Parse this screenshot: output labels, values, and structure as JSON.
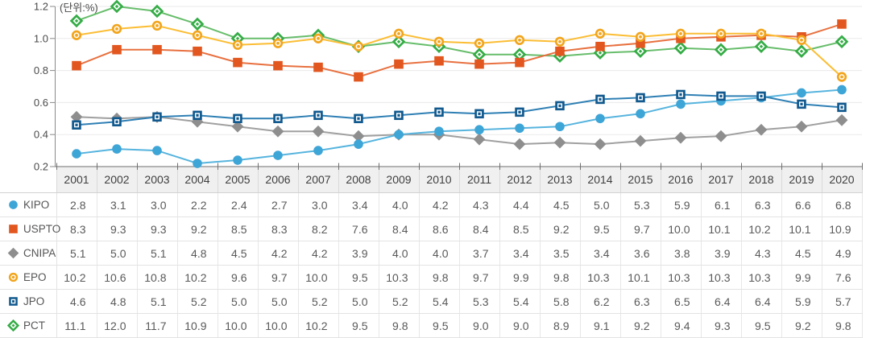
{
  "chart_data": {
    "type": "line",
    "title": "",
    "unit_label": "(단위:%)",
    "categories": [
      2001,
      2002,
      2003,
      2004,
      2005,
      2006,
      2007,
      2008,
      2009,
      2010,
      2011,
      2012,
      2013,
      2014,
      2015,
      2016,
      2017,
      2018,
      2019,
      2020
    ],
    "series": [
      {
        "name": "KIPO",
        "marker": "filled-circle",
        "color": "#3ea5d7",
        "line_color": "#56b4de",
        "values": [
          2.8,
          3.1,
          3.0,
          2.2,
          2.4,
          2.7,
          3.0,
          3.4,
          4.0,
          4.2,
          4.3,
          4.4,
          4.5,
          5.0,
          5.3,
          5.9,
          6.1,
          6.3,
          6.6,
          6.8
        ]
      },
      {
        "name": "USPTO",
        "marker": "filled-square",
        "color": "#e2571f",
        "line_color": "#e8703f",
        "values": [
          8.3,
          9.3,
          9.3,
          9.2,
          8.5,
          8.3,
          8.2,
          7.6,
          8.4,
          8.6,
          8.4,
          8.5,
          9.2,
          9.5,
          9.7,
          10.0,
          10.1,
          10.2,
          10.1,
          10.9
        ]
      },
      {
        "name": "CNIPA",
        "marker": "filled-diamond",
        "color": "#8e8e8e",
        "line_color": "#a0a0a0",
        "values": [
          5.1,
          5.0,
          5.1,
          4.8,
          4.5,
          4.2,
          4.2,
          3.9,
          4.0,
          4.0,
          3.7,
          3.4,
          3.5,
          3.4,
          3.6,
          3.8,
          3.9,
          4.3,
          4.5,
          4.9
        ]
      },
      {
        "name": "EPO",
        "marker": "dot-circle",
        "color": "#f2a51d",
        "line_color": "#fbbd33",
        "values": [
          10.2,
          10.6,
          10.8,
          10.2,
          9.6,
          9.7,
          10.0,
          9.5,
          10.3,
          9.8,
          9.7,
          9.9,
          9.8,
          10.3,
          10.1,
          10.3,
          10.3,
          10.3,
          9.9,
          7.6
        ]
      },
      {
        "name": "JPO",
        "marker": "dot-square",
        "color": "#11598e",
        "line_color": "#2e7fb4",
        "values": [
          4.6,
          4.8,
          5.1,
          5.2,
          5.0,
          5.0,
          5.2,
          5.0,
          5.2,
          5.4,
          5.3,
          5.4,
          5.8,
          6.2,
          6.3,
          6.5,
          6.4,
          6.4,
          5.9,
          5.7
        ]
      },
      {
        "name": "PCT",
        "marker": "dot-diamond",
        "color": "#35ac46",
        "line_color": "#67bd6b",
        "values": [
          11.1,
          12.0,
          11.7,
          10.9,
          10.0,
          10.0,
          10.2,
          9.5,
          9.8,
          9.5,
          9.0,
          9.0,
          8.9,
          9.1,
          9.2,
          9.4,
          9.3,
          9.5,
          9.2,
          9.8
        ]
      }
    ],
    "ylim": [
      0.2,
      1.2
    ],
    "y_ticks": [
      1.2,
      1.0,
      0.8,
      0.6,
      0.4,
      0.2
    ],
    "plot_note": "plotted value = table value / 10",
    "grid": true,
    "legend_position": "first column of data table",
    "draw_order": [
      "CNIPA",
      "KIPO",
      "JPO",
      "PCT",
      "USPTO",
      "EPO"
    ],
    "xlabel": "",
    "ylabel": ""
  },
  "style": {
    "grid_color": "#eaeaea",
    "axis_color": "#8a8a8a",
    "header_bg": "#f0f0f0",
    "border_color": "#e3e3e3",
    "value_text": "#595959",
    "header_text": "#3e3e3e"
  }
}
